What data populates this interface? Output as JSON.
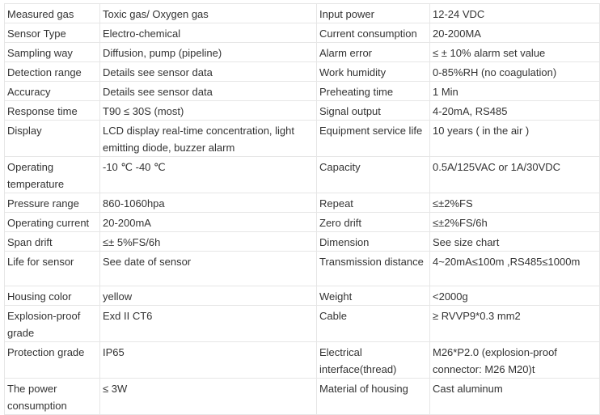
{
  "rows": [
    [
      "Measured gas",
      "Toxic gas/ Oxygen gas",
      "Input power",
      "12-24 VDC"
    ],
    [
      "Sensor Type",
      "Electro-chemical",
      "Current consumption",
      "20-200MA"
    ],
    [
      "Sampling way",
      "Diffusion, pump (pipeline)",
      "Alarm error",
      "≤ ± 10% alarm set value"
    ],
    [
      "Detection range",
      "Details see sensor data",
      "Work humidity",
      "0-85%RH (no coagulation)"
    ],
    [
      "Accuracy",
      "Details see sensor data",
      "Preheating time",
      "1 Min"
    ],
    [
      "Response time",
      "T90 ≤ 30S (most)",
      "Signal output",
      "4-20mA, RS485"
    ],
    [
      "Display",
      "LCD display real-time concentration, light emitting diode, buzzer alarm",
      "Equipment service life",
      "10 years ( in the air )"
    ],
    [
      "Operating temperature",
      "-10 ℃ -40 ℃",
      "Capacity",
      "0.5A/125VAC or 1A/30VDC"
    ],
    [
      "Pressure range",
      "860-1060hpa",
      "Repeat",
      "≤±2%FS"
    ],
    [
      "Operating current",
      "20-200mA",
      "Zero drift",
      "≤±2%FS/6h"
    ],
    [
      "Span drift",
      "≤± 5%FS/6h",
      "Dimension",
      "See size chart"
    ],
    [
      "Life for sensor",
      "See date of sensor",
      "Transmission distance",
      "4~20mA≤100m ,RS485≤1000m"
    ],
    [
      "Housing color",
      "yellow",
      "Weight",
      "<2000g"
    ],
    [
      "Explosion-proof grade",
      "Exd II CT6",
      "Cable",
      "≥ RVVP9*0.3 mm2"
    ],
    [
      "Protection grade",
      " IP65",
      "Electrical interface(thread)",
      "M26*P2.0 (explosion-proof connector: M26 M20)t"
    ],
    [
      "The power consumption",
      "≤ 3W",
      "Material of housing",
      "Cast aluminum"
    ]
  ]
}
